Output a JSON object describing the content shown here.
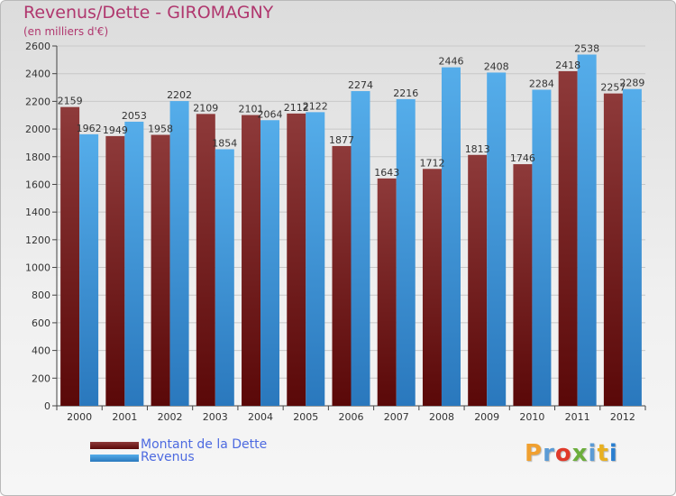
{
  "header": {
    "title": "Revenus/Dette - GIROMAGNY",
    "subtitle": "(en milliers d'€)"
  },
  "legend": {
    "dette_label": "Montant de la Dette",
    "revenus_label": "Revenus"
  },
  "logo": {
    "letters": [
      "P",
      "r",
      "o",
      "x",
      "i",
      "t",
      "i"
    ],
    "colors": [
      "#f0a030",
      "#5b9bd5",
      "#e03a2a",
      "#6cae3c",
      "#5b9bd5",
      "#e8b020",
      "#2a7fd0"
    ]
  },
  "colors": {
    "dette": "#6b1515",
    "dette_light": "#8e3a3a",
    "revenus": "#4aa3e6",
    "revenus_dark": "#2e7fc4"
  },
  "chart_data": {
    "type": "bar",
    "title": "Revenus/Dette - GIROMAGNY",
    "ylabel": "(en milliers d'€)",
    "categories": [
      "2000",
      "2001",
      "2002",
      "2003",
      "2004",
      "2005",
      "2006",
      "2007",
      "2008",
      "2009",
      "2010",
      "2011",
      "2012"
    ],
    "series": [
      {
        "name": "Montant de la Dette",
        "values": [
          2159,
          1949,
          1958,
          2109,
          2101,
          2112,
          1877,
          1643,
          1712,
          1813,
          1746,
          2418,
          2257
        ]
      },
      {
        "name": "Revenus",
        "values": [
          1962,
          2053,
          2202,
          1854,
          2064,
          2122,
          2274,
          2216,
          2446,
          2408,
          2284,
          2538,
          2289
        ]
      }
    ],
    "ylim": [
      0,
      2600
    ],
    "yticks": [
      0,
      200,
      400,
      600,
      800,
      1000,
      1200,
      1400,
      1600,
      1800,
      2000,
      2200,
      2400,
      2600
    ],
    "grid": true,
    "legend_position": "bottom-left"
  }
}
